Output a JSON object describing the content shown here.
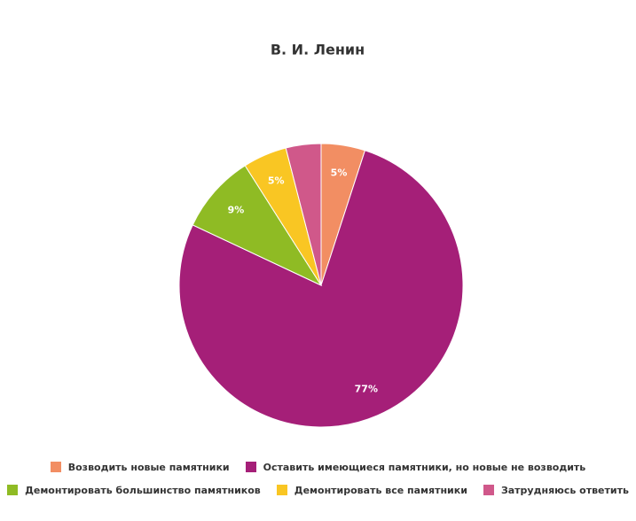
{
  "chart_data": {
    "type": "pie",
    "title": "В. И. Ленин",
    "categories": [
      "Возводить новые памятники",
      "Оставить имеющиеся памятники, но новые не возводить",
      "Демонтировать большинство памятников",
      "Демонтировать все памятники",
      "Затрудняюсь ответить"
    ],
    "values": [
      5,
      77,
      9,
      5,
      4
    ],
    "value_labels": [
      "5%",
      "77%",
      "9%",
      "5%",
      null
    ],
    "colors": [
      "#f28e63",
      "#a51f78",
      "#8fbb24",
      "#f9c623",
      "#d0588a"
    ]
  }
}
